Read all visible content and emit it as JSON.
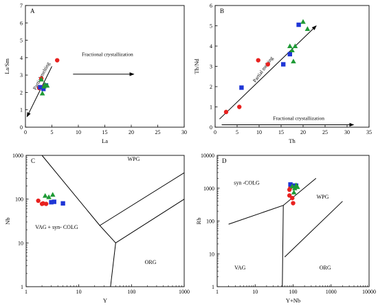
{
  "chart_data": [
    {
      "panel": "A",
      "type": "scatter",
      "xscale": "linear",
      "yscale": "linear",
      "xlabel": "La",
      "ylabel": "La/Sm",
      "xlim": [
        0,
        30
      ],
      "ylim": [
        0,
        7
      ],
      "xticks": [
        0,
        5,
        10,
        15,
        20,
        25,
        30
      ],
      "yticks": [
        0,
        1,
        2,
        3,
        4,
        5,
        6,
        7
      ],
      "series": [
        {
          "marker": "circle",
          "color": "#e8211f",
          "points": [
            [
              6,
              3.85
            ],
            [
              3,
              2.8
            ],
            [
              2.6,
              2.25
            ],
            [
              3.3,
              2.3
            ]
          ]
        },
        {
          "marker": "square",
          "color": "#1f36d6",
          "points": [
            [
              2.8,
              2.3
            ],
            [
              3.9,
              2.4
            ],
            [
              3.4,
              2.2
            ]
          ]
        },
        {
          "marker": "triangle",
          "color": "#1e9a35",
          "points": [
            [
              3.0,
              2.75
            ],
            [
              3.5,
              2.35
            ],
            [
              3.2,
              1.95
            ],
            [
              4.1,
              2.4
            ],
            [
              3.7,
              2.45
            ]
          ]
        }
      ],
      "annotations": [
        {
          "text": "Partial melting",
          "at": [
            3.3,
            2.9
          ],
          "angle": -62
        },
        {
          "text": "Fractional crystallization",
          "at": [
            15.5,
            4.1
          ],
          "angle": 0
        }
      ],
      "arrows": [
        {
          "from": [
            5,
            3.5
          ],
          "to": [
            0.3,
            0.6
          ]
        },
        {
          "from": [
            9,
            3.05
          ],
          "to": [
            20.5,
            3.05
          ]
        }
      ]
    },
    {
      "panel": "B",
      "type": "scatter",
      "xscale": "linear",
      "yscale": "linear",
      "xlabel": "Th",
      "ylabel": "Th/Nd",
      "xlim": [
        0,
        35
      ],
      "ylim": [
        0,
        6
      ],
      "xticks": [
        0,
        5,
        10,
        15,
        20,
        25,
        30,
        35
      ],
      "yticks": [
        0,
        1,
        2,
        3,
        4,
        5,
        6
      ],
      "series": [
        {
          "marker": "circle",
          "color": "#e8211f",
          "points": [
            [
              2.5,
              0.75
            ],
            [
              5.5,
              1.0
            ],
            [
              9.8,
              3.3
            ],
            [
              12,
              3.1
            ]
          ]
        },
        {
          "marker": "square",
          "color": "#1f36d6",
          "points": [
            [
              6,
              1.95
            ],
            [
              15.5,
              3.1
            ],
            [
              17,
              3.6
            ],
            [
              19,
              5.05
            ]
          ]
        },
        {
          "marker": "triangle",
          "color": "#1e9a35",
          "points": [
            [
              17,
              4.0
            ],
            [
              17.8,
              3.25
            ],
            [
              17.5,
              3.8
            ],
            [
              18.2,
              4.0
            ],
            [
              20,
              5.2
            ],
            [
              21,
              4.85
            ]
          ]
        }
      ],
      "annotations": [
        {
          "text": "Partial melting",
          "at": [
            11.2,
            2.8
          ],
          "angle": -54
        },
        {
          "text": "Fractional crystallization",
          "at": [
            19,
            0.35
          ],
          "angle": 0
        }
      ],
      "arrows": [
        {
          "from": [
            1,
            0.4
          ],
          "to": [
            23,
            5.0
          ]
        },
        {
          "from": [
            1.5,
            0.12
          ],
          "to": [
            31.5,
            0.12
          ]
        }
      ]
    },
    {
      "panel": "C",
      "type": "scatter",
      "xscale": "log",
      "yscale": "log",
      "xlabel": "Y",
      "ylabel": "Nb",
      "xlim": [
        1,
        1000
      ],
      "ylim": [
        1,
        1000
      ],
      "xticks": [
        1,
        10,
        100,
        1000
      ],
      "yticks": [
        1,
        10,
        100,
        1000
      ],
      "series": [
        {
          "marker": "circle",
          "color": "#e8211f",
          "points": [
            [
              1.7,
              92
            ],
            [
              2.0,
              78
            ],
            [
              2.1,
              80
            ],
            [
              2.4,
              78
            ]
          ]
        },
        {
          "marker": "square",
          "color": "#1f36d6",
          "points": [
            [
              3.0,
              85
            ],
            [
              3.4,
              87
            ],
            [
              5.0,
              80
            ]
          ]
        },
        {
          "marker": "triangle",
          "color": "#1e9a35",
          "points": [
            [
              2.3,
              120
            ],
            [
              2.7,
              112
            ],
            [
              3.2,
              127
            ]
          ]
        }
      ],
      "boundaries": [
        [
          [
            2,
            1000
          ],
          [
            25,
            25
          ],
          [
            50,
            10
          ]
        ],
        [
          [
            25,
            25
          ],
          [
            1000,
            400
          ]
        ],
        [
          [
            50,
            10
          ],
          [
            1000,
            100
          ]
        ],
        [
          [
            50,
            10
          ],
          [
            40,
            1
          ]
        ]
      ],
      "field_labels": [
        {
          "text": "WPG",
          "at": [
            110,
            750
          ]
        },
        {
          "text": "VAG + syn- COLG",
          "at": [
            3.8,
            21
          ]
        },
        {
          "text": "ORG",
          "at": [
            230,
            3.3
          ]
        }
      ]
    },
    {
      "panel": "D",
      "type": "scatter",
      "xscale": "log",
      "yscale": "log",
      "xlabel": "Y+Nb",
      "ylabel": "Rb",
      "xlim": [
        1,
        10000
      ],
      "ylim": [
        1,
        10000
      ],
      "xticks": [
        1,
        10,
        100,
        1000,
        10000
      ],
      "yticks": [
        1,
        10,
        100,
        1000,
        10000
      ],
      "series": [
        {
          "marker": "circle",
          "color": "#e8211f",
          "points": [
            [
              80,
              900
            ],
            [
              80,
              600
            ],
            [
              95,
              500
            ],
            [
              100,
              350
            ],
            [
              85,
              1050
            ]
          ]
        },
        {
          "marker": "square",
          "color": "#1f36d6",
          "points": [
            [
              85,
              1300
            ],
            [
              100,
              1200
            ],
            [
              120,
              1200
            ]
          ]
        },
        {
          "marker": "triangle",
          "color": "#1e9a35",
          "points": [
            [
              95,
              1150
            ],
            [
              110,
              1000
            ],
            [
              120,
              1250
            ],
            [
              130,
              1100
            ],
            [
              105,
              750
            ]
          ]
        }
      ],
      "boundaries": [
        [
          [
            2,
            80
          ],
          [
            55,
            300
          ],
          [
            400,
            2000
          ]
        ],
        [
          [
            55,
            300
          ],
          [
            52,
            1
          ]
        ],
        [
          [
            60,
            8
          ],
          [
            2000,
            400
          ]
        ]
      ],
      "field_labels": [
        {
          "text": "syn -COLG",
          "at": [
            6,
            1300
          ]
        },
        {
          "text": "WPG",
          "at": [
            600,
            480
          ]
        },
        {
          "text": "VAG",
          "at": [
            4,
            3.3
          ]
        },
        {
          "text": "ORG",
          "at": [
            700,
            3.3
          ]
        }
      ]
    }
  ]
}
